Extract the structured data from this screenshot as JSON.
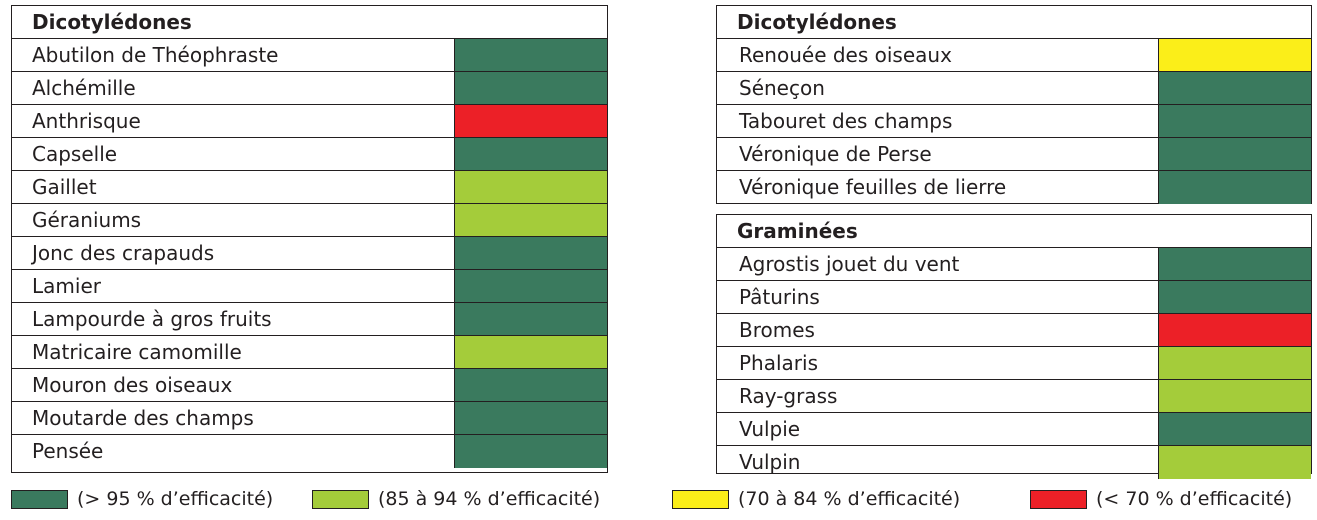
{
  "colors": {
    "dark_green": "#3a7a5e",
    "light_green": "#a4cc3a",
    "yellow": "#fbee19",
    "red": "#ec2027"
  },
  "tables": [
    {
      "header": "Dicotylédones",
      "rows": [
        {
          "label": "Abutilon de Théophraste",
          "rating": "dark_green"
        },
        {
          "label": "Alchémille",
          "rating": "dark_green"
        },
        {
          "label": "Anthrisque",
          "rating": "red"
        },
        {
          "label": "Capselle",
          "rating": "dark_green"
        },
        {
          "label": "Gaillet",
          "rating": "light_green"
        },
        {
          "label": "Géraniums",
          "rating": "light_green"
        },
        {
          "label": "Jonc des crapauds",
          "rating": "dark_green"
        },
        {
          "label": "Lamier",
          "rating": "dark_green"
        },
        {
          "label": "Lampourde à gros fruits",
          "rating": "dark_green"
        },
        {
          "label": "Matricaire camomille",
          "rating": "light_green"
        },
        {
          "label": "Mouron des oiseaux",
          "rating": "dark_green"
        },
        {
          "label": "Moutarde des champs",
          "rating": "dark_green"
        },
        {
          "label": "Pensée",
          "rating": "dark_green"
        }
      ]
    },
    {
      "header": "Dicotylédones",
      "rows": [
        {
          "label": "Renouée des oiseaux",
          "rating": "yellow"
        },
        {
          "label": "Séneçon",
          "rating": "dark_green"
        },
        {
          "label": "Tabouret des champs",
          "rating": "dark_green"
        },
        {
          "label": "Véronique de Perse",
          "rating": "dark_green"
        },
        {
          "label": "Véronique feuilles de lierre",
          "rating": "dark_green"
        }
      ]
    },
    {
      "header": "Graminées",
      "rows": [
        {
          "label": "Agrostis jouet du vent",
          "rating": "dark_green"
        },
        {
          "label": "Pâturins",
          "rating": "dark_green"
        },
        {
          "label": "Bromes",
          "rating": "red"
        },
        {
          "label": "Phalaris",
          "rating": "light_green"
        },
        {
          "label": "Ray-grass",
          "rating": "light_green"
        },
        {
          "label": "Vulpie",
          "rating": "dark_green"
        },
        {
          "label": "Vulpin",
          "rating": "light_green"
        }
      ]
    }
  ],
  "legend": [
    {
      "label": "(> 95 % d’efficacité)",
      "rating": "dark_green"
    },
    {
      "label": "(85 à 94 % d’efficacité)",
      "rating": "light_green"
    },
    {
      "label": "(70 à 84 % d’efficacité)",
      "rating": "yellow"
    },
    {
      "label": "(< 70 % d’efficacité)",
      "rating": "red"
    }
  ]
}
